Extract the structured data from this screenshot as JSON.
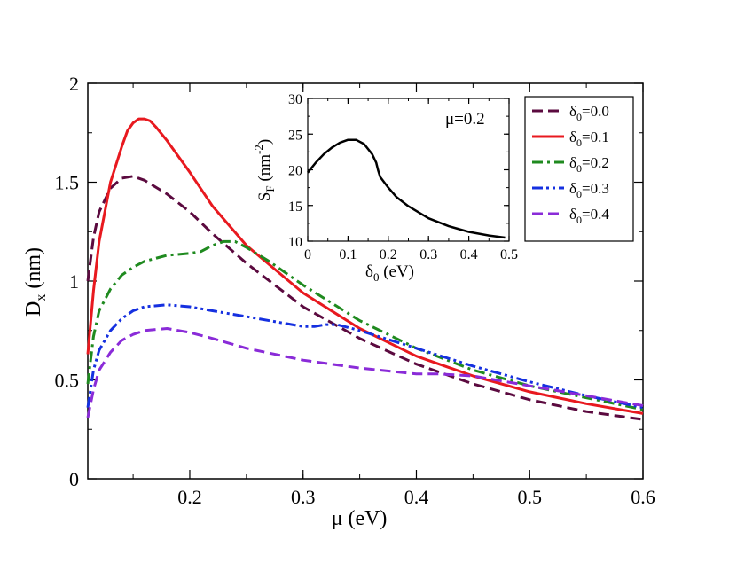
{
  "chart_data": [
    {
      "type": "line",
      "title": "",
      "xlabel": "μ (eV)",
      "ylabel": "D_x (nm)",
      "xlim": [
        0.11,
        0.6
      ],
      "ylim": [
        0,
        2
      ],
      "x_ticks": [
        0.2,
        0.3,
        0.4,
        0.5,
        0.6
      ],
      "x_tick_labels": [
        "0.2",
        "0.3",
        "0.4",
        "0.5",
        "0.6"
      ],
      "y_ticks": [
        0,
        0.5,
        1,
        1.5,
        2
      ],
      "y_tick_labels": [
        "0",
        "0.5",
        "1",
        "1.5",
        "2"
      ],
      "legend_position": "top-right",
      "series": [
        {
          "name": "δ0=0.0",
          "legend_main": "δ",
          "legend_sub": "0",
          "legend_rest": "=0.0",
          "color": "#5b0a3f",
          "dash": "dash",
          "x": [
            0.11,
            0.115,
            0.12,
            0.13,
            0.14,
            0.15,
            0.16,
            0.18,
            0.2,
            0.22,
            0.25,
            0.3,
            0.35,
            0.4,
            0.45,
            0.5,
            0.55,
            0.6
          ],
          "y": [
            1.0,
            1.22,
            1.35,
            1.47,
            1.52,
            1.53,
            1.51,
            1.44,
            1.35,
            1.24,
            1.09,
            0.87,
            0.71,
            0.58,
            0.48,
            0.4,
            0.34,
            0.3
          ]
        },
        {
          "name": "δ0=0.1",
          "legend_main": "δ",
          "legend_sub": "0",
          "legend_rest": "=0.1",
          "color": "#e8191f",
          "dash": "solid",
          "x": [
            0.11,
            0.115,
            0.12,
            0.13,
            0.14,
            0.145,
            0.15,
            0.155,
            0.16,
            0.165,
            0.17,
            0.18,
            0.2,
            0.22,
            0.25,
            0.3,
            0.35,
            0.4,
            0.45,
            0.5,
            0.55,
            0.6
          ],
          "y": [
            0.63,
            0.95,
            1.2,
            1.5,
            1.68,
            1.76,
            1.8,
            1.82,
            1.82,
            1.81,
            1.78,
            1.71,
            1.55,
            1.38,
            1.18,
            0.94,
            0.76,
            0.62,
            0.52,
            0.44,
            0.38,
            0.33
          ]
        },
        {
          "name": "δ0=0.2",
          "legend_main": "δ",
          "legend_sub": "0",
          "legend_rest": "=0.2",
          "color": "#1f8a1f",
          "dash": "dashdot",
          "x": [
            0.11,
            0.115,
            0.12,
            0.13,
            0.14,
            0.15,
            0.16,
            0.18,
            0.2,
            0.21,
            0.22,
            0.23,
            0.24,
            0.25,
            0.27,
            0.3,
            0.35,
            0.4,
            0.45,
            0.5,
            0.55,
            0.6
          ],
          "y": [
            0.48,
            0.72,
            0.85,
            0.96,
            1.03,
            1.07,
            1.1,
            1.13,
            1.14,
            1.15,
            1.18,
            1.2,
            1.2,
            1.17,
            1.1,
            0.98,
            0.8,
            0.66,
            0.55,
            0.47,
            0.41,
            0.35
          ]
        },
        {
          "name": "δ0=0.3",
          "legend_main": "δ",
          "legend_sub": "0",
          "legend_rest": "=0.3",
          "color": "#1530e0",
          "dash": "dashdotdot",
          "x": [
            0.11,
            0.115,
            0.12,
            0.13,
            0.14,
            0.15,
            0.16,
            0.18,
            0.2,
            0.22,
            0.25,
            0.28,
            0.3,
            0.31,
            0.32,
            0.33,
            0.35,
            0.4,
            0.45,
            0.5,
            0.55,
            0.6
          ],
          "y": [
            0.36,
            0.55,
            0.65,
            0.75,
            0.81,
            0.85,
            0.87,
            0.88,
            0.87,
            0.85,
            0.82,
            0.79,
            0.77,
            0.77,
            0.78,
            0.78,
            0.75,
            0.66,
            0.57,
            0.49,
            0.42,
            0.36
          ]
        },
        {
          "name": "δ0=0.4",
          "legend_main": "δ",
          "legend_sub": "0",
          "legend_rest": "=0.4",
          "color": "#8a2bd8",
          "dash": "dash",
          "x": [
            0.11,
            0.115,
            0.12,
            0.13,
            0.14,
            0.15,
            0.16,
            0.18,
            0.2,
            0.22,
            0.25,
            0.3,
            0.35,
            0.4,
            0.42,
            0.45,
            0.5,
            0.55,
            0.6
          ],
          "y": [
            0.31,
            0.45,
            0.55,
            0.64,
            0.7,
            0.73,
            0.75,
            0.76,
            0.74,
            0.71,
            0.66,
            0.6,
            0.56,
            0.53,
            0.53,
            0.52,
            0.47,
            0.42,
            0.37
          ]
        }
      ]
    },
    {
      "type": "line",
      "title": "",
      "xlabel": "δ0 (eV)",
      "ylabel": "SF (nm-2)",
      "annotation": "μ=0.2",
      "xlim": [
        0,
        0.5
      ],
      "ylim": [
        10,
        30
      ],
      "x_ticks": [
        0,
        0.1,
        0.2,
        0.3,
        0.4,
        0.5
      ],
      "x_tick_labels": [
        "0",
        "0.1",
        "0.2",
        "0.3",
        "0.4",
        "0.5"
      ],
      "y_ticks": [
        10,
        15,
        20,
        25,
        30
      ],
      "y_tick_labels": [
        "10",
        "15",
        "20",
        "25",
        "30"
      ],
      "series": [
        {
          "name": "SF",
          "color": "#000000",
          "dash": "solid",
          "x": [
            0,
            0.02,
            0.04,
            0.06,
            0.08,
            0.1,
            0.12,
            0.14,
            0.16,
            0.17,
            0.175,
            0.18,
            0.2,
            0.22,
            0.25,
            0.3,
            0.35,
            0.4,
            0.45,
            0.49
          ],
          "y": [
            19.6,
            21.0,
            22.2,
            23.1,
            23.8,
            24.2,
            24.2,
            23.6,
            22.2,
            21.0,
            19.9,
            19.0,
            17.5,
            16.2,
            14.9,
            13.2,
            12.1,
            11.3,
            10.8,
            10.5
          ]
        }
      ]
    }
  ]
}
